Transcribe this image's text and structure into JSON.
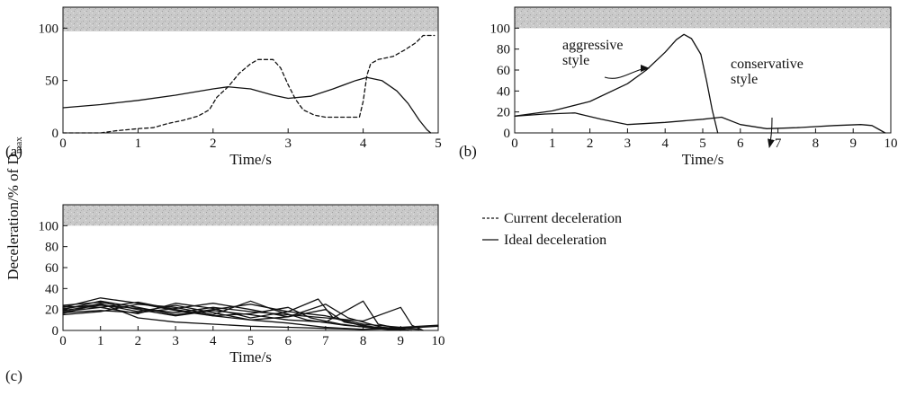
{
  "figure": {
    "ylabel": "Deceleration/% of D",
    "ylabel_sub": "max",
    "legend": [
      {
        "label": "Current deceleration",
        "style": "dashed"
      },
      {
        "label": "Ideal deceleration",
        "style": "solid"
      }
    ]
  },
  "chart_data": [
    {
      "id": "a",
      "type": "line",
      "panel_label": "(a)",
      "xlabel": "Time/s",
      "ylabel": "",
      "xlim": [
        0,
        5
      ],
      "ylim": [
        0,
        120
      ],
      "xticks": [
        0,
        1,
        2,
        3,
        4,
        5
      ],
      "yticks": [
        0,
        50,
        100
      ],
      "shaded_band": [
        97,
        120
      ],
      "series": [
        {
          "style": "solid",
          "points": [
            [
              0,
              24
            ],
            [
              0.5,
              27
            ],
            [
              1,
              31
            ],
            [
              1.5,
              36
            ],
            [
              2,
              42
            ],
            [
              2.2,
              44
            ],
            [
              2.5,
              42
            ],
            [
              2.8,
              36
            ],
            [
              3,
              33
            ],
            [
              3.3,
              35
            ],
            [
              3.6,
              42
            ],
            [
              3.9,
              50
            ],
            [
              4.05,
              53
            ],
            [
              4.25,
              50
            ],
            [
              4.45,
              40
            ],
            [
              4.6,
              28
            ],
            [
              4.75,
              12
            ],
            [
              4.85,
              3
            ],
            [
              4.9,
              0
            ]
          ]
        },
        {
          "style": "dashed",
          "points": [
            [
              0,
              0
            ],
            [
              0.5,
              0
            ],
            [
              0.7,
              2
            ],
            [
              1,
              4
            ],
            [
              1.2,
              5
            ],
            [
              1.4,
              9
            ],
            [
              1.6,
              12
            ],
            [
              1.8,
              16
            ],
            [
              1.95,
              22
            ],
            [
              2.05,
              34
            ],
            [
              2.2,
              44
            ],
            [
              2.35,
              57
            ],
            [
              2.5,
              66
            ],
            [
              2.6,
              70
            ],
            [
              2.8,
              70
            ],
            [
              2.9,
              62
            ],
            [
              3,
              46
            ],
            [
              3.1,
              32
            ],
            [
              3.2,
              22
            ],
            [
              3.35,
              17
            ],
            [
              3.5,
              15
            ],
            [
              3.7,
              15
            ],
            [
              3.95,
              15
            ],
            [
              4,
              30
            ],
            [
              4.05,
              55
            ],
            [
              4.1,
              66
            ],
            [
              4.2,
              70
            ],
            [
              4.4,
              73
            ],
            [
              4.55,
              79
            ],
            [
              4.7,
              86
            ],
            [
              4.8,
              93
            ],
            [
              4.95,
              93
            ]
          ]
        }
      ]
    },
    {
      "id": "b",
      "type": "line",
      "panel_label": "(b)",
      "xlabel": "Time/s",
      "ylabel": "",
      "xlim": [
        0,
        10
      ],
      "ylim": [
        0,
        120
      ],
      "xticks": [
        0,
        1,
        2,
        3,
        4,
        5,
        6,
        7,
        8,
        9,
        10
      ],
      "yticks": [
        0,
        20,
        40,
        60,
        80,
        100
      ],
      "shaded_band": [
        100,
        120
      ],
      "annotations": [
        {
          "text": "aggressive",
          "text2": "style"
        },
        {
          "text": "conservative",
          "text2": "style"
        }
      ],
      "series": [
        {
          "name": "aggressive style",
          "style": "solid",
          "points": [
            [
              0,
              16
            ],
            [
              1,
              21
            ],
            [
              2,
              30
            ],
            [
              3,
              47
            ],
            [
              3.5,
              60
            ],
            [
              4,
              77
            ],
            [
              4.3,
              89
            ],
            [
              4.5,
              94
            ],
            [
              4.7,
              90
            ],
            [
              4.95,
              75
            ],
            [
              5.1,
              50
            ],
            [
              5.25,
              22
            ],
            [
              5.4,
              0
            ]
          ]
        },
        {
          "name": "conservative style",
          "style": "solid",
          "points": [
            [
              0,
              16
            ],
            [
              0.8,
              18
            ],
            [
              1.6,
              19
            ],
            [
              2.3,
              13
            ],
            [
              3,
              8
            ],
            [
              4,
              10
            ],
            [
              5,
              13
            ],
            [
              5.5,
              15
            ],
            [
              6,
              8
            ],
            [
              6.7,
              4
            ],
            [
              7.5,
              5
            ],
            [
              8.5,
              7
            ],
            [
              9.2,
              8
            ],
            [
              9.5,
              7
            ],
            [
              9.7,
              3
            ],
            [
              9.85,
              0
            ]
          ]
        }
      ]
    },
    {
      "id": "c",
      "type": "line",
      "panel_label": "(c)",
      "xlabel": "Time/s",
      "ylabel": "",
      "xlim": [
        0,
        10
      ],
      "ylim": [
        0,
        120
      ],
      "xticks": [
        0,
        1,
        2,
        3,
        4,
        5,
        6,
        7,
        8,
        9,
        10
      ],
      "yticks": [
        0,
        20,
        40,
        60,
        80,
        100
      ],
      "shaded_band": [
        100,
        120
      ],
      "series": [
        {
          "style": "solid",
          "points": [
            [
              0,
              20
            ],
            [
              1,
              28
            ],
            [
              2,
              22
            ],
            [
              3,
              15
            ],
            [
              4,
              20
            ],
            [
              5,
              25
            ],
            [
              6,
              18
            ],
            [
              6.8,
              30
            ],
            [
              7.2,
              12
            ],
            [
              8,
              4
            ],
            [
              9,
              1
            ]
          ]
        },
        {
          "style": "solid",
          "points": [
            [
              0,
              22
            ],
            [
              1,
              31
            ],
            [
              2,
              26
            ],
            [
              3,
              19
            ],
            [
              4,
              14
            ],
            [
              5,
              10
            ],
            [
              6,
              7
            ],
            [
              7,
              3
            ],
            [
              8,
              1
            ]
          ]
        },
        {
          "style": "solid",
          "points": [
            [
              0,
              17
            ],
            [
              1,
              19
            ],
            [
              2,
              17
            ],
            [
              3,
              21
            ],
            [
              4,
              26
            ],
            [
              5,
              20
            ],
            [
              6,
              13
            ],
            [
              7,
              25
            ],
            [
              7.6,
              12
            ],
            [
              8.5,
              3
            ],
            [
              9.5,
              1
            ]
          ]
        },
        {
          "style": "solid",
          "points": [
            [
              0,
              24
            ],
            [
              1,
              27
            ],
            [
              2,
              20
            ],
            [
              3,
              14
            ],
            [
              4,
              19
            ],
            [
              5,
              15
            ],
            [
              6,
              10
            ],
            [
              7,
              8
            ],
            [
              8,
              28
            ],
            [
              8.4,
              6
            ],
            [
              9.2,
              0
            ]
          ]
        },
        {
          "style": "solid",
          "points": [
            [
              0,
              15
            ],
            [
              1,
              18
            ],
            [
              2,
              25
            ],
            [
              3,
              22
            ],
            [
              4,
              15
            ],
            [
              5,
              28
            ],
            [
              5.6,
              20
            ],
            [
              6.5,
              10
            ],
            [
              7.5,
              5
            ],
            [
              8.5,
              2
            ],
            [
              9.3,
              0
            ]
          ]
        },
        {
          "style": "solid",
          "points": [
            [
              0,
              19
            ],
            [
              1,
              24
            ],
            [
              2,
              21
            ],
            [
              3,
              17
            ],
            [
              4,
              22
            ],
            [
              5,
              18
            ],
            [
              6,
              15
            ],
            [
              7,
              12
            ],
            [
              8,
              9
            ],
            [
              9,
              22
            ],
            [
              9.3,
              5
            ],
            [
              9.6,
              0
            ]
          ]
        },
        {
          "style": "solid",
          "points": [
            [
              0,
              23
            ],
            [
              1,
              22
            ],
            [
              2,
              16
            ],
            [
              3,
              26
            ],
            [
              4,
              21
            ],
            [
              5,
              12
            ],
            [
              6,
              18
            ],
            [
              7,
              14
            ],
            [
              8,
              6
            ],
            [
              9,
              3
            ],
            [
              10,
              5
            ]
          ]
        },
        {
          "style": "solid",
          "points": [
            [
              0,
              16
            ],
            [
              1,
              26
            ],
            [
              2,
              12
            ],
            [
              3,
              8
            ],
            [
              4,
              6
            ],
            [
              5,
              4
            ],
            [
              6,
              3
            ],
            [
              7,
              2
            ],
            [
              8,
              1
            ],
            [
              9,
              2
            ],
            [
              10,
              4
            ]
          ]
        },
        {
          "style": "solid",
          "points": [
            [
              0,
              18
            ],
            [
              1,
              22
            ],
            [
              2,
              27
            ],
            [
              3,
              20
            ],
            [
              4,
              14
            ],
            [
              5,
              16
            ],
            [
              6,
              22
            ],
            [
              6.6,
              12
            ],
            [
              7.4,
              6
            ],
            [
              8.3,
              2
            ],
            [
              9,
              0
            ]
          ]
        },
        {
          "style": "solid",
          "points": [
            [
              0,
              21
            ],
            [
              1,
              25
            ],
            [
              2,
              18
            ],
            [
              3,
              24
            ],
            [
              4,
              17
            ],
            [
              5,
              10
            ],
            [
              6,
              13
            ],
            [
              7,
              20
            ],
            [
              7.5,
              8
            ],
            [
              8.5,
              2
            ],
            [
              9.5,
              3
            ]
          ]
        }
      ]
    }
  ]
}
